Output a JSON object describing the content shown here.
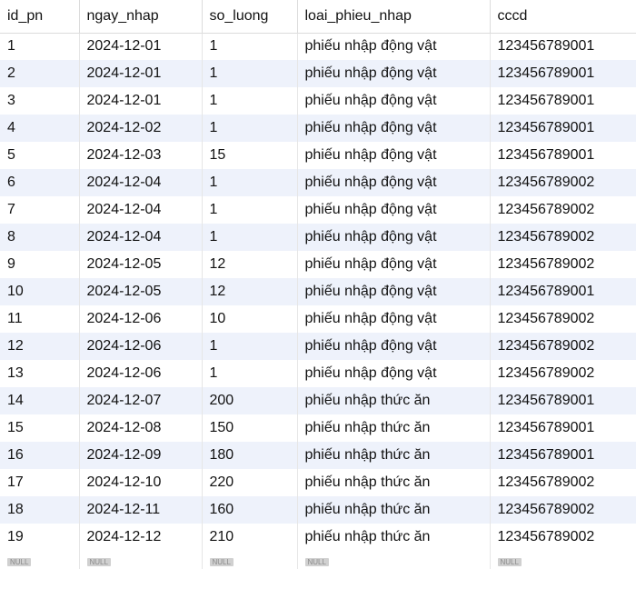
{
  "columns": [
    "id_pn",
    "ngay_nhap",
    "so_luong",
    "loai_phieu_nhap",
    "cccd"
  ],
  "rows": [
    [
      "1",
      "2024-12-01",
      "1",
      "phiếu nhập động vật",
      "123456789001"
    ],
    [
      "2",
      "2024-12-01",
      "1",
      "phiếu nhập động vật",
      "123456789001"
    ],
    [
      "3",
      "2024-12-01",
      "1",
      "phiếu nhập động vật",
      "123456789001"
    ],
    [
      "4",
      "2024-12-02",
      "1",
      "phiếu nhập động vật",
      "123456789001"
    ],
    [
      "5",
      "2024-12-03",
      "15",
      "phiếu nhập động vật",
      "123456789001"
    ],
    [
      "6",
      "2024-12-04",
      "1",
      "phiếu nhập động vật",
      "123456789002"
    ],
    [
      "7",
      "2024-12-04",
      "1",
      "phiếu nhập động vật",
      "123456789002"
    ],
    [
      "8",
      "2024-12-04",
      "1",
      "phiếu nhập động vật",
      "123456789002"
    ],
    [
      "9",
      "2024-12-05",
      "12",
      "phiếu nhập động vật",
      "123456789002"
    ],
    [
      "10",
      "2024-12-05",
      "12",
      "phiếu nhập động vật",
      "123456789001"
    ],
    [
      "11",
      "2024-12-06",
      "10",
      "phiếu nhập động vật",
      "123456789002"
    ],
    [
      "12",
      "2024-12-06",
      "1",
      "phiếu nhập động vật",
      "123456789002"
    ],
    [
      "13",
      "2024-12-06",
      "1",
      "phiếu nhập động vật",
      "123456789002"
    ],
    [
      "14",
      "2024-12-07",
      "200",
      "phiếu nhập thức ăn",
      "123456789001"
    ],
    [
      "15",
      "2024-12-08",
      "150",
      "phiếu nhập thức ăn",
      "123456789001"
    ],
    [
      "16",
      "2024-12-09",
      "180",
      "phiếu nhập thức ăn",
      "123456789001"
    ],
    [
      "17",
      "2024-12-10",
      "220",
      "phiếu nhập thức ăn",
      "123456789002"
    ],
    [
      "18",
      "2024-12-11",
      "160",
      "phiếu nhập thức ăn",
      "123456789002"
    ],
    [
      "19",
      "2024-12-12",
      "210",
      "phiếu nhập thức ăn",
      "123456789002"
    ]
  ],
  "null_label": "NULL"
}
